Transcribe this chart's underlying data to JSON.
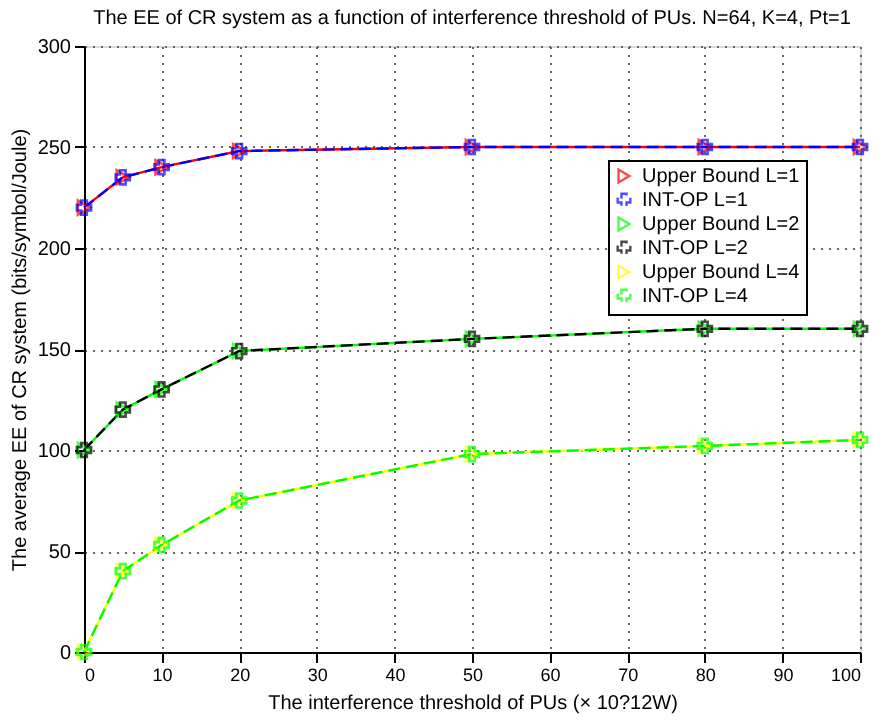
{
  "chart_data": {
    "type": "line",
    "title": "The EE of CR system as a function of interference threshold of PUs. N=64, K=4, Pt=1",
    "xlabel": "The interference threshold of PUs (× 10?12W)",
    "ylabel": "The average EE of CR system (bits/symbol/Joule)",
    "x": [
      0,
      5,
      10,
      20,
      50,
      80,
      100
    ],
    "series": [
      {
        "name": "Upper Bound L=1",
        "color": "#ff0000",
        "marker": "triangle",
        "line_style": "solid",
        "values": [
          220,
          235,
          240,
          248,
          250,
          250,
          250
        ]
      },
      {
        "name": "INT-OP L=1",
        "color": "#0000ff",
        "marker": "cross",
        "line_style": "dashed",
        "values": [
          220,
          235,
          240,
          248,
          250,
          250,
          250
        ]
      },
      {
        "name": "Upper Bound L=2",
        "color": "#00ff00",
        "marker": "triangle",
        "line_style": "solid",
        "values": [
          100,
          120,
          130,
          149,
          155,
          160,
          160
        ]
      },
      {
        "name": "INT-OP L=2",
        "color": "#000000",
        "marker": "cross",
        "line_style": "dashed",
        "values": [
          100,
          120,
          130,
          149,
          155,
          160,
          160
        ]
      },
      {
        "name": "Upper Bound L=4",
        "color": "#ffff00",
        "marker": "triangle",
        "line_style": "solid",
        "values": [
          0,
          40,
          53,
          75,
          98,
          102,
          105
        ]
      },
      {
        "name": "INT-OP L=4",
        "color": "#00ff00",
        "marker": "cross",
        "line_style": "dashed",
        "values": [
          0,
          40,
          53,
          75,
          98,
          102,
          105
        ]
      }
    ],
    "xlim": [
      0,
      100
    ],
    "xticks": [
      0,
      10,
      20,
      30,
      40,
      50,
      60,
      70,
      80,
      90,
      100
    ],
    "ylim": [
      0,
      300
    ],
    "yticks": [
      0,
      50,
      100,
      150,
      200,
      250,
      300
    ],
    "grid": true,
    "legend": "top right"
  }
}
